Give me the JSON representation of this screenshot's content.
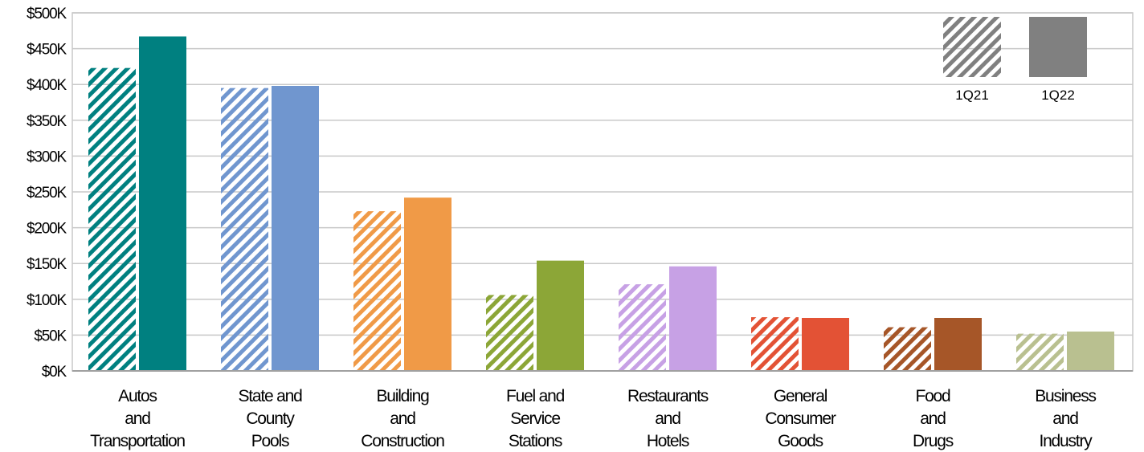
{
  "chart_data": {
    "type": "bar",
    "categories": [
      [
        "Autos",
        "and",
        "Transportation"
      ],
      [
        "State and",
        "County",
        "Pools"
      ],
      [
        "Building",
        "and",
        "Construction"
      ],
      [
        "Fuel and",
        "Service",
        "Stations"
      ],
      [
        "Restaurants",
        "and",
        "Hotels"
      ],
      [
        "General",
        "Consumer",
        "Goods"
      ],
      [
        "Food",
        "and",
        "Drugs"
      ],
      [
        "Business",
        "and",
        "Industry"
      ]
    ],
    "series": [
      {
        "name": "1Q21",
        "style": "hatched",
        "values": [
          423,
          395,
          223,
          106,
          121,
          75,
          61,
          52
        ]
      },
      {
        "name": "1Q22",
        "style": "solid",
        "values": [
          467,
          398,
          242,
          154,
          146,
          74,
          74,
          55
        ]
      }
    ],
    "colors": [
      "#008080",
      "#7096cf",
      "#f09a47",
      "#8ca637",
      "#c7a1e5",
      "#e35235",
      "#a65628",
      "#b9c090"
    ],
    "legend_color": "#808080",
    "ylim": [
      0,
      500
    ],
    "yticks": [
      0,
      50,
      100,
      150,
      200,
      250,
      300,
      350,
      400,
      450,
      500
    ],
    "tick_prefix": "$",
    "tick_suffix": "K",
    "legend_position": "top-right",
    "grid": true,
    "title": "",
    "xlabel": "",
    "ylabel": ""
  }
}
